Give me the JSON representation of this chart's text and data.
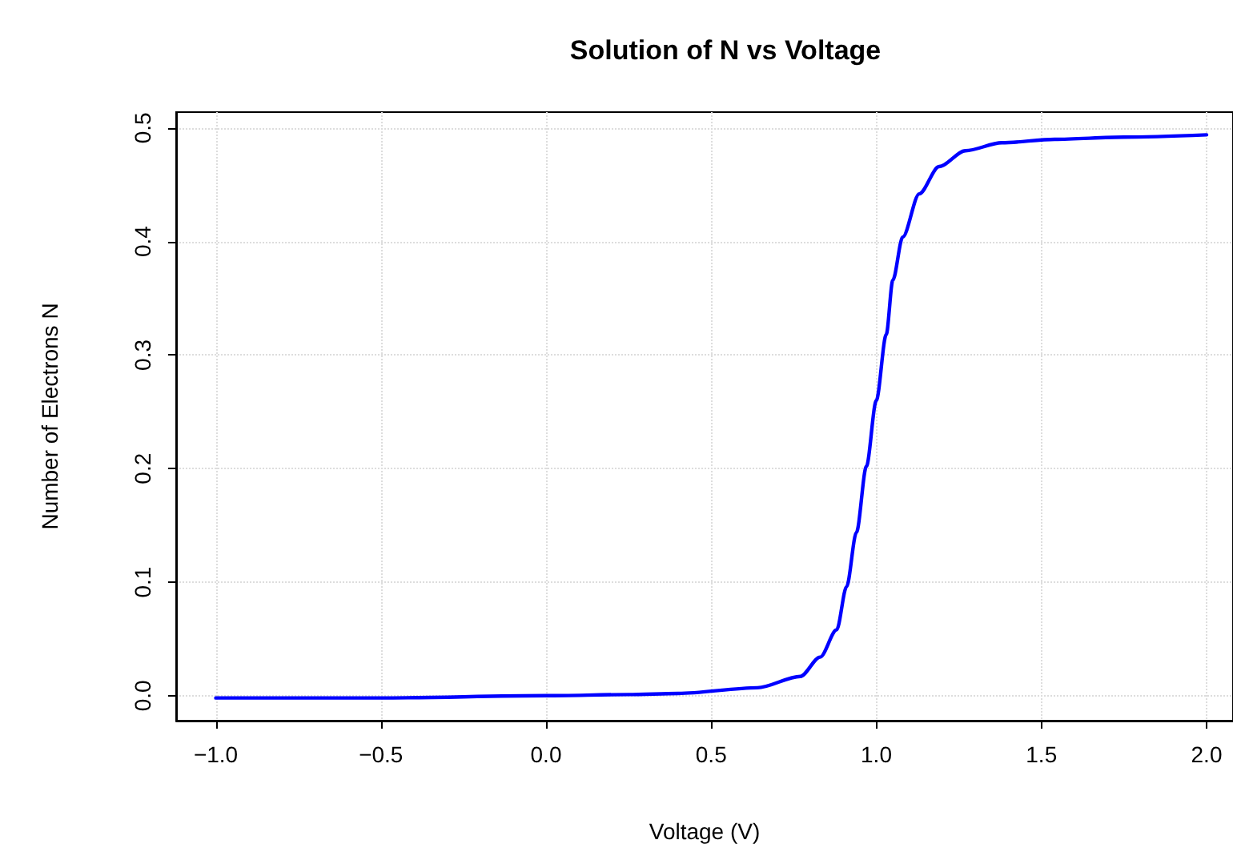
{
  "chart_data": {
    "type": "line",
    "title": "Solution of N vs Voltage",
    "xlabel": "Voltage (V)",
    "ylabel": "Number of Electrons N",
    "x": [
      -1.0,
      -0.5,
      0.0,
      0.25,
      0.4,
      0.64,
      0.77,
      0.83,
      0.88,
      0.91,
      0.94,
      0.97,
      1.0,
      1.03,
      1.05,
      1.08,
      1.13,
      1.19,
      1.27,
      1.38,
      1.54,
      1.75,
      2.0
    ],
    "series": [
      {
        "color": "#0000ff",
        "values": [
          -0.002,
          -0.002,
          0.0,
          0.001,
          0.002,
          0.007,
          0.017,
          0.034,
          0.058,
          0.096,
          0.144,
          0.202,
          0.26,
          0.318,
          0.366,
          0.404,
          0.442,
          0.466,
          0.48,
          0.487,
          0.49,
          0.492,
          0.494
        ]
      }
    ],
    "xlim": [
      -1.12,
      2.08
    ],
    "xticks": [
      {
        "value": -1.0,
        "label": "−1.0"
      },
      {
        "value": -0.5,
        "label": "−0.5"
      },
      {
        "value": 0.0,
        "label": "0.0"
      },
      {
        "value": 0.5,
        "label": "0.5"
      },
      {
        "value": 1.0,
        "label": "1.0"
      },
      {
        "value": 1.5,
        "label": "1.5"
      },
      {
        "value": 2.0,
        "label": "2.0"
      }
    ],
    "ylim": [
      -0.022,
      0.514
    ],
    "yticks": [
      {
        "value": 0.0,
        "label": "0.0"
      },
      {
        "value": 0.1,
        "label": "0.1"
      },
      {
        "value": 0.2,
        "label": "0.2"
      },
      {
        "value": 0.3,
        "label": "0.3"
      },
      {
        "value": 0.4,
        "label": "0.4"
      },
      {
        "value": 0.5,
        "label": "0.5"
      }
    ],
    "grid": true,
    "marker": "none",
    "line_style": "solid"
  }
}
